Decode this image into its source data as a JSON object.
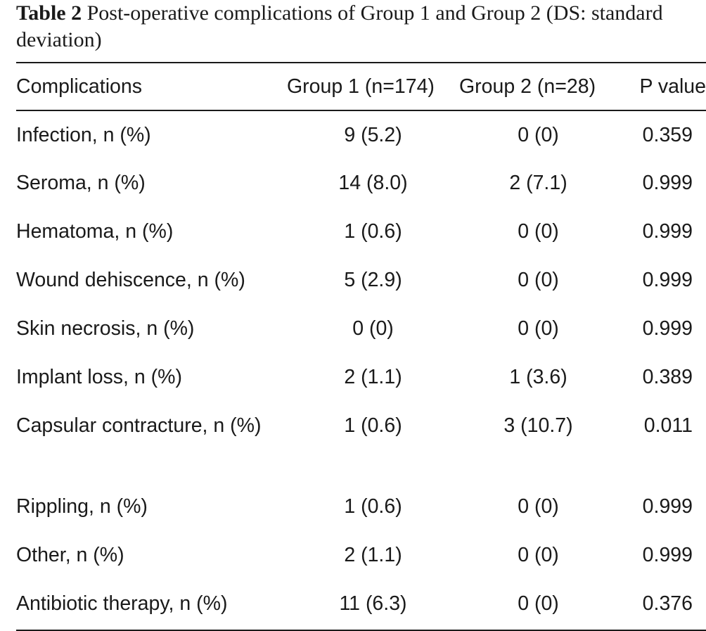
{
  "caption": {
    "label": "Table 2",
    "text": "Post-operative complications of Group 1 and Group 2 (DS: standard deviation)"
  },
  "table": {
    "headers": [
      "Complications",
      "Group 1 (n=174)",
      "Group 2 (n=28)",
      "P value"
    ],
    "rows": [
      [
        "Infection, n (%)",
        "9 (5.2)",
        "0 (0)",
        "0.359"
      ],
      [
        "Seroma, n (%)",
        "14 (8.0)",
        "2 (7.1)",
        "0.999"
      ],
      [
        "Hematoma, n (%)",
        "1 (0.6)",
        "0 (0)",
        "0.999"
      ],
      [
        "Wound dehiscence, n (%)",
        "5 (2.9)",
        "0 (0)",
        "0.999"
      ],
      [
        "Skin necrosis, n (%)",
        "0 (0)",
        "0 (0)",
        "0.999"
      ],
      [
        "Implant loss, n (%)",
        "2 (1.1)",
        "1 (3.6)",
        "0.389"
      ],
      [
        "Capsular contracture, n (%)",
        "1 (0.6)",
        "3 (10.7)",
        "0.011"
      ],
      [
        "Rippling, n (%)",
        "1 (0.6)",
        "0 (0)",
        "0.999"
      ],
      [
        "Other, n (%)",
        "2 (1.1)",
        "0 (0)",
        "0.999"
      ],
      [
        "Antibiotic therapy, n (%)",
        "11 (6.3)",
        "0 (0)",
        "0.376"
      ]
    ]
  }
}
